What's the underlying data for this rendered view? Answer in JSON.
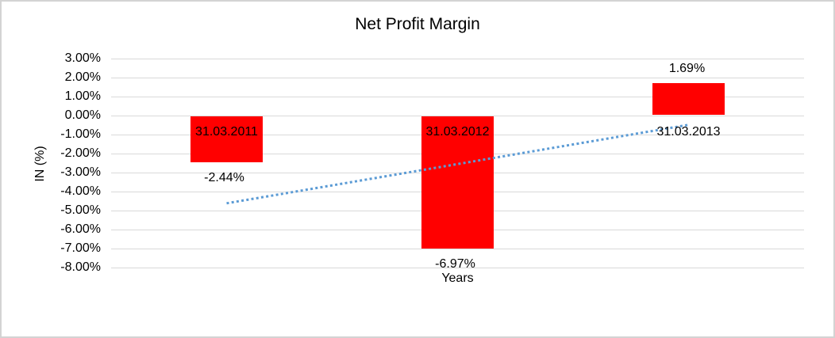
{
  "chart_data": {
    "type": "bar",
    "title": "Net Profit Margin",
    "ylabel": "IN (%)",
    "xlabel": "Years",
    "categories": [
      "31.03.2011",
      "31.03.2012",
      "31.03.2013"
    ],
    "series": [
      {
        "name": "Net Profit Margin",
        "values": [
          -2.44,
          -6.97,
          1.69
        ]
      }
    ],
    "data_labels": [
      "-2.44%",
      "-6.97%",
      "1.69%"
    ],
    "y_axis": {
      "min": -8,
      "max": 3,
      "step": 1,
      "ticks": [
        {
          "value": 3,
          "label": "3.00%"
        },
        {
          "value": 2,
          "label": "2.00%"
        },
        {
          "value": 1,
          "label": "1.00%"
        },
        {
          "value": 0,
          "label": "0.00%"
        },
        {
          "value": -1,
          "label": "-1.00%"
        },
        {
          "value": -2,
          "label": "-2.00%"
        },
        {
          "value": -3,
          "label": "-3.00%"
        },
        {
          "value": -4,
          "label": "-4.00%"
        },
        {
          "value": -5,
          "label": "-5.00%"
        },
        {
          "value": -6,
          "label": "-6.00%"
        },
        {
          "value": -7,
          "label": "-7.00%"
        },
        {
          "value": -8,
          "label": "-8.00%"
        }
      ]
    },
    "gridlines": true,
    "legend": "none",
    "trendline": {
      "type": "linear",
      "style": "dotted",
      "color": "#5B9BD5"
    },
    "colors": {
      "bar": "#FF0000",
      "gridline": "#D9D9D9",
      "text": "#000000",
      "background": "#FFFFFF",
      "border": "#D3D3D3"
    }
  }
}
